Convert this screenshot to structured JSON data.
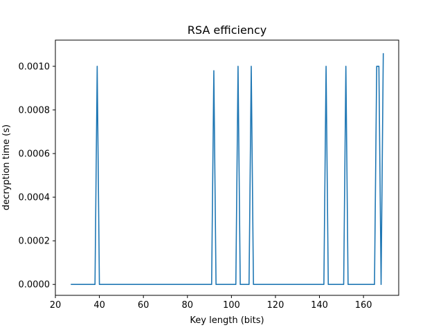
{
  "chart_data": {
    "type": "line",
    "title": "RSA efficiency",
    "xlabel": "Key length (bits)",
    "ylabel": "decryption time (s)",
    "xlim": [
      20,
      176
    ],
    "ylim": [
      -5e-05,
      0.00112
    ],
    "xticks": [
      20,
      40,
      60,
      80,
      100,
      120,
      140,
      160
    ],
    "yticks": [
      0,
      0.0002,
      0.0004,
      0.0006,
      0.0008,
      0.001
    ],
    "ytick_labels": [
      "0.0000",
      "0.0002",
      "0.0004",
      "0.0006",
      "0.0008",
      "0.0010"
    ],
    "grid": false,
    "series": [
      {
        "color": "#1f77b4",
        "x": [
          27,
          38,
          39,
          40,
          91,
          92,
          93,
          102,
          103,
          104,
          108,
          109,
          110,
          142,
          143,
          144,
          151,
          152,
          153,
          165,
          166,
          167,
          168,
          169
        ],
        "y": [
          0,
          0,
          0.001,
          0,
          0,
          0.00098,
          0,
          0,
          0.001,
          0,
          0,
          0.001,
          0,
          0,
          0.001,
          0,
          0,
          0.001,
          0,
          0,
          0.001,
          0.001,
          0,
          0.00106
        ]
      }
    ]
  }
}
